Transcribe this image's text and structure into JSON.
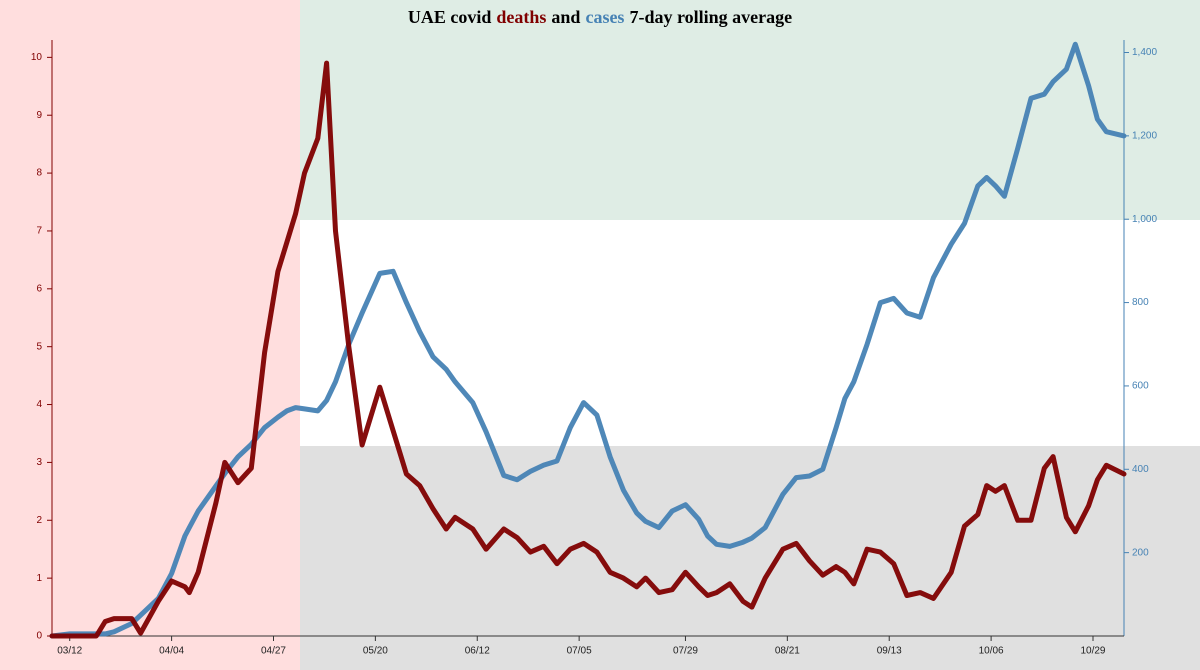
{
  "chart_data": {
    "type": "line",
    "title": [
      "UAE covid",
      "deaths",
      "and",
      "cases",
      "7-day rolling average"
    ],
    "x": [
      "03/08",
      "03/12",
      "03/18",
      "03/20",
      "03/22",
      "03/26",
      "03/28",
      "04/01",
      "04/04",
      "04/07",
      "04/08",
      "04/10",
      "04/14",
      "04/16",
      "04/19",
      "04/22",
      "04/25",
      "04/28",
      "04/30",
      "05/02",
      "05/04",
      "05/07",
      "05/09",
      "05/11",
      "05/14",
      "05/17",
      "05/21",
      "05/24",
      "05/27",
      "05/30",
      "06/02",
      "06/05",
      "06/07",
      "06/11",
      "06/14",
      "06/18",
      "06/21",
      "06/24",
      "06/27",
      "06/30",
      "07/03",
      "07/06",
      "07/09",
      "07/12",
      "07/15",
      "07/18",
      "07/20",
      "07/23",
      "07/26",
      "07/29",
      "08/01",
      "08/03",
      "08/05",
      "08/08",
      "08/11",
      "08/13",
      "08/16",
      "08/20",
      "08/23",
      "08/26",
      "08/29",
      "09/01",
      "09/03",
      "09/05",
      "09/08",
      "09/11",
      "09/14",
      "09/17",
      "09/20",
      "09/23",
      "09/27",
      "09/30",
      "10/03",
      "10/05",
      "10/07",
      "10/09",
      "10/12",
      "10/15",
      "10/18",
      "10/20",
      "10/23",
      "10/25",
      "10/28",
      "10/30",
      "11/01",
      "11/05"
    ],
    "xlim": [
      "03/08",
      "11/05"
    ],
    "xticks": [
      "03/12",
      "04/04",
      "04/27",
      "05/20",
      "06/12",
      "07/05",
      "07/29",
      "08/21",
      "09/13",
      "10/06",
      "10/29"
    ],
    "series": [
      {
        "name": "deaths",
        "color": "#800000",
        "axis": "y",
        "values": [
          0,
          0,
          0,
          0.25,
          0.3,
          0.3,
          0.05,
          0.6,
          0.95,
          0.85,
          0.75,
          1.1,
          2.3,
          3.0,
          2.65,
          2.9,
          4.9,
          6.3,
          6.8,
          7.3,
          8.0,
          8.6,
          9.9,
          7.0,
          5.0,
          3.3,
          4.3,
          3.55,
          2.8,
          2.6,
          2.2,
          1.85,
          2.05,
          1.85,
          1.5,
          1.85,
          1.7,
          1.45,
          1.55,
          1.25,
          1.5,
          1.6,
          1.45,
          1.1,
          1.0,
          0.85,
          1.0,
          0.75,
          0.8,
          1.1,
          0.85,
          0.7,
          0.75,
          0.9,
          0.6,
          0.5,
          1.0,
          1.5,
          1.6,
          1.3,
          1.05,
          1.2,
          1.1,
          0.9,
          1.5,
          1.45,
          1.25,
          0.7,
          0.75,
          0.65,
          1.1,
          1.9,
          2.1,
          2.6,
          2.5,
          2.6,
          2.0,
          2.0,
          2.9,
          3.1,
          2.05,
          1.8,
          2.25,
          2.7,
          2.95,
          2.8
        ]
      },
      {
        "name": "cases",
        "color": "#4682b4",
        "axis": "y2",
        "values": [
          0,
          5,
          5,
          5,
          10,
          30,
          50,
          90,
          150,
          240,
          260,
          300,
          360,
          390,
          430,
          460,
          500,
          525,
          540,
          548,
          545,
          540,
          565,
          610,
          700,
          775,
          870,
          875,
          800,
          730,
          670,
          640,
          610,
          560,
          490,
          385,
          375,
          395,
          410,
          420,
          500,
          560,
          530,
          430,
          350,
          295,
          275,
          260,
          300,
          315,
          280,
          240,
          220,
          215,
          225,
          235,
          260,
          340,
          380,
          384,
          400,
          500,
          570,
          610,
          700,
          800,
          810,
          775,
          765,
          860,
          940,
          990,
          1080,
          1100,
          1080,
          1055,
          1170,
          1290,
          1300,
          1330,
          1360,
          1420,
          1320,
          1240,
          1210,
          1200
        ]
      }
    ],
    "ylim": [
      0,
      10.3
    ],
    "yticks": [
      0,
      1,
      2,
      3,
      4,
      5,
      6,
      7,
      8,
      9,
      10
    ],
    "y2lim": [
      0,
      1430
    ],
    "y2ticks": [
      200,
      400,
      600,
      800,
      {
        "value": 1000,
        "label": "1,000"
      },
      {
        "value": 1200,
        "label": "1,200"
      },
      {
        "value": 1400,
        "label": "1,400"
      }
    ]
  }
}
